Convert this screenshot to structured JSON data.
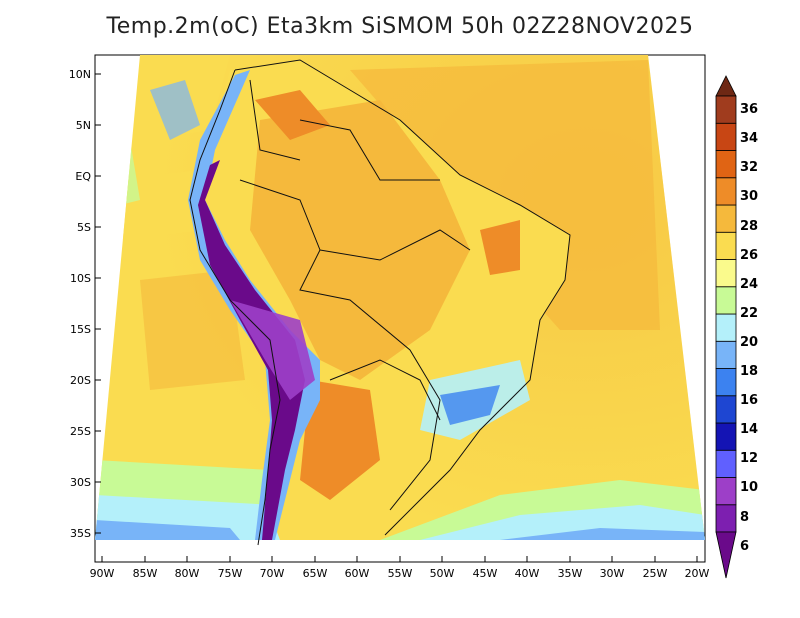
{
  "title": "Temp.2m(oC) Eta3km SiSMOM 50h 02Z28NOV2025",
  "latitude_labels": [
    "10N",
    "5N",
    "EQ",
    "5S",
    "10S",
    "15S",
    "20S",
    "25S",
    "30S",
    "35S"
  ],
  "longitude_labels": [
    "90W",
    "85W",
    "80W",
    "75W",
    "70W",
    "65W",
    "60W",
    "55W",
    "50W",
    "45W",
    "40W",
    "35W",
    "30W",
    "25W",
    "20W"
  ],
  "colorbar": {
    "labels": [
      "6",
      "8",
      "10",
      "12",
      "14",
      "16",
      "18",
      "20",
      "22",
      "24",
      "26",
      "28",
      "30",
      "32",
      "34",
      "36"
    ],
    "colors": [
      "#6a0a8a",
      "#7d1fb0",
      "#9d3fc8",
      "#6060ff",
      "#1414b4",
      "#1e46d2",
      "#3c82f0",
      "#78b4f8",
      "#b4f0fa",
      "#c8fa96",
      "#fafa8c",
      "#fadc50",
      "#f5b93c",
      "#ee8c28",
      "#e06414",
      "#c84614",
      "#a03c1e",
      "#6e2814"
    ]
  }
}
